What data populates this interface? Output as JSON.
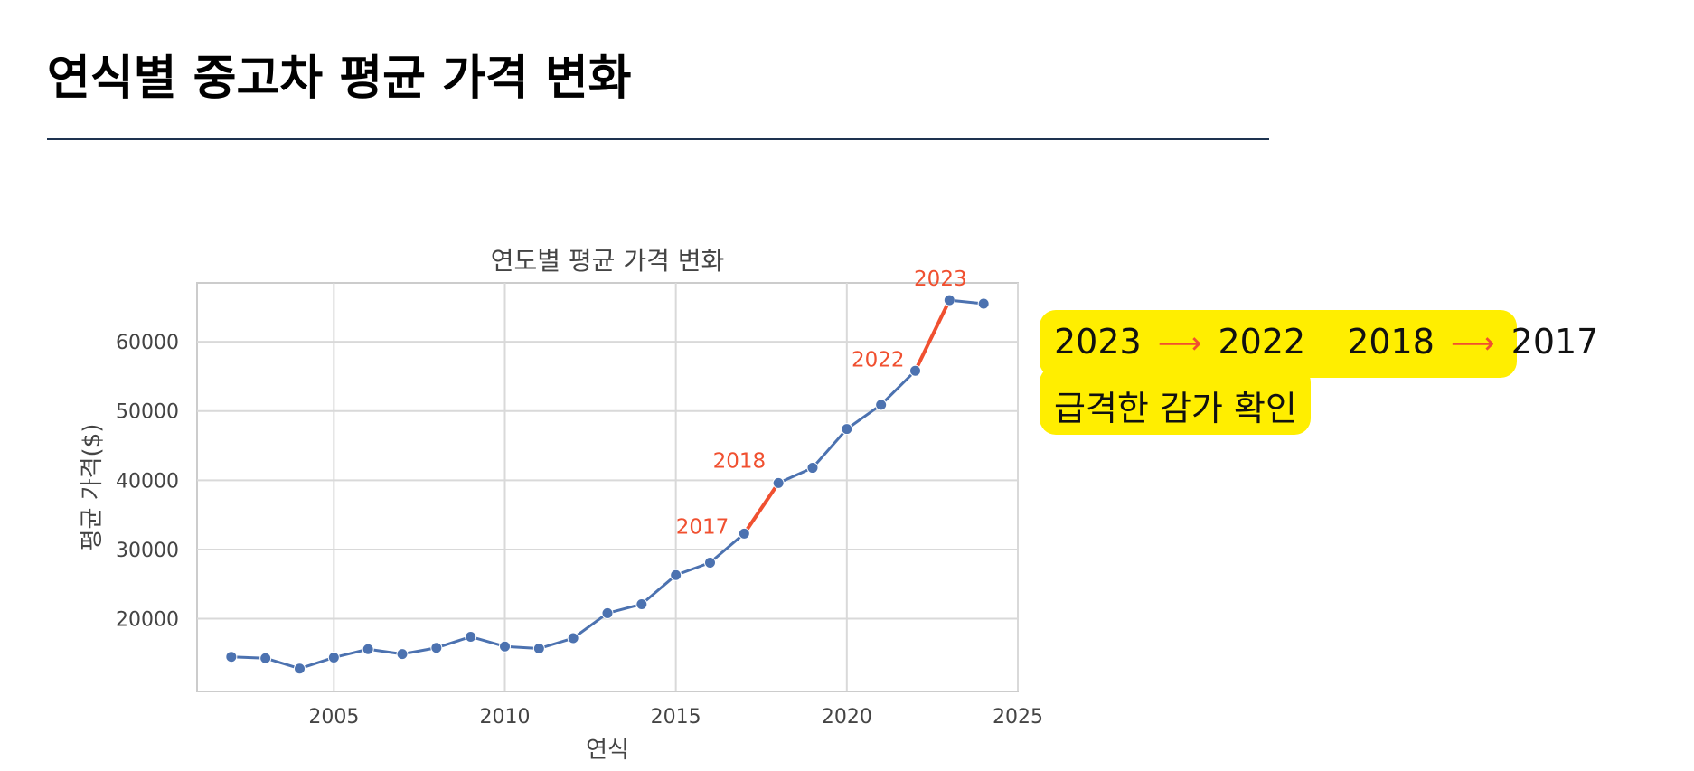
{
  "page": {
    "title": "연식별 중고차 평균 가격 변화"
  },
  "callout": {
    "pair1_from": "2023",
    "pair1_to": "2022",
    "pair2_from": "2018",
    "pair2_to": "2017",
    "arrow_glyph": "⟶",
    "text": "급격한 감가 확인",
    "background_color": "#ffee00",
    "arrow_color": "#f05030"
  },
  "chart_data": {
    "type": "line",
    "title": "연도별 평균 가격 변화",
    "xlabel": "연식",
    "ylabel": "평균 가격($)",
    "xlim": [
      2001,
      2025
    ],
    "ylim": [
      9500,
      68500
    ],
    "xticks": [
      2005,
      2010,
      2015,
      2020,
      2025
    ],
    "yticks": [
      20000,
      30000,
      40000,
      50000,
      60000
    ],
    "grid": true,
    "legend": "none",
    "series_color": "#4c72b0",
    "highlight_color": "#f05030",
    "x": [
      2002,
      2003,
      2004,
      2005,
      2006,
      2007,
      2008,
      2009,
      2010,
      2011,
      2012,
      2013,
      2014,
      2015,
      2016,
      2017,
      2018,
      2019,
      2020,
      2021,
      2022,
      2023,
      2024
    ],
    "values": [
      14500,
      14300,
      12800,
      14400,
      15600,
      14900,
      15800,
      17400,
      16000,
      15700,
      17200,
      20800,
      22100,
      26300,
      28100,
      32300,
      39600,
      41800,
      47400,
      50900,
      55800,
      66000,
      65500
    ],
    "highlighted_segments": [
      [
        2017,
        2018
      ],
      [
        2022,
        2023
      ]
    ],
    "annotations": [
      {
        "label": "2023",
        "x": 2023
      },
      {
        "label": "2022",
        "x": 2022
      },
      {
        "label": "2018",
        "x": 2018
      },
      {
        "label": "2017",
        "x": 2017
      }
    ]
  }
}
